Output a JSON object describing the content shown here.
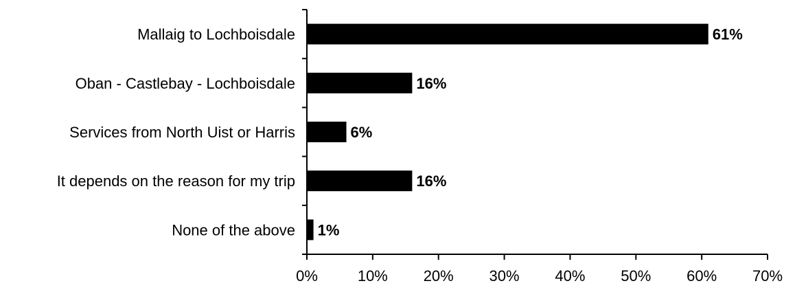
{
  "chart_data": {
    "type": "bar",
    "orientation": "horizontal",
    "categories": [
      "Mallaig to Lochboisdale",
      "Oban - Castlebay - Lochboisdale",
      "Services from North Uist or Harris",
      "It depends on the reason for my trip",
      "None of the above"
    ],
    "values": [
      61,
      16,
      6,
      16,
      1
    ],
    "data_labels": [
      "61%",
      "16%",
      "6%",
      "16%",
      "1%"
    ],
    "xlim": [
      0,
      70
    ],
    "x_ticks": [
      0,
      10,
      20,
      30,
      40,
      50,
      60,
      70
    ],
    "x_tick_labels": [
      "0%",
      "10%",
      "20%",
      "30%",
      "40%",
      "50%",
      "60%",
      "70%"
    ],
    "title": "",
    "xlabel": "",
    "ylabel": "",
    "grid": false,
    "legend": "none",
    "bar_color": "#000000"
  }
}
